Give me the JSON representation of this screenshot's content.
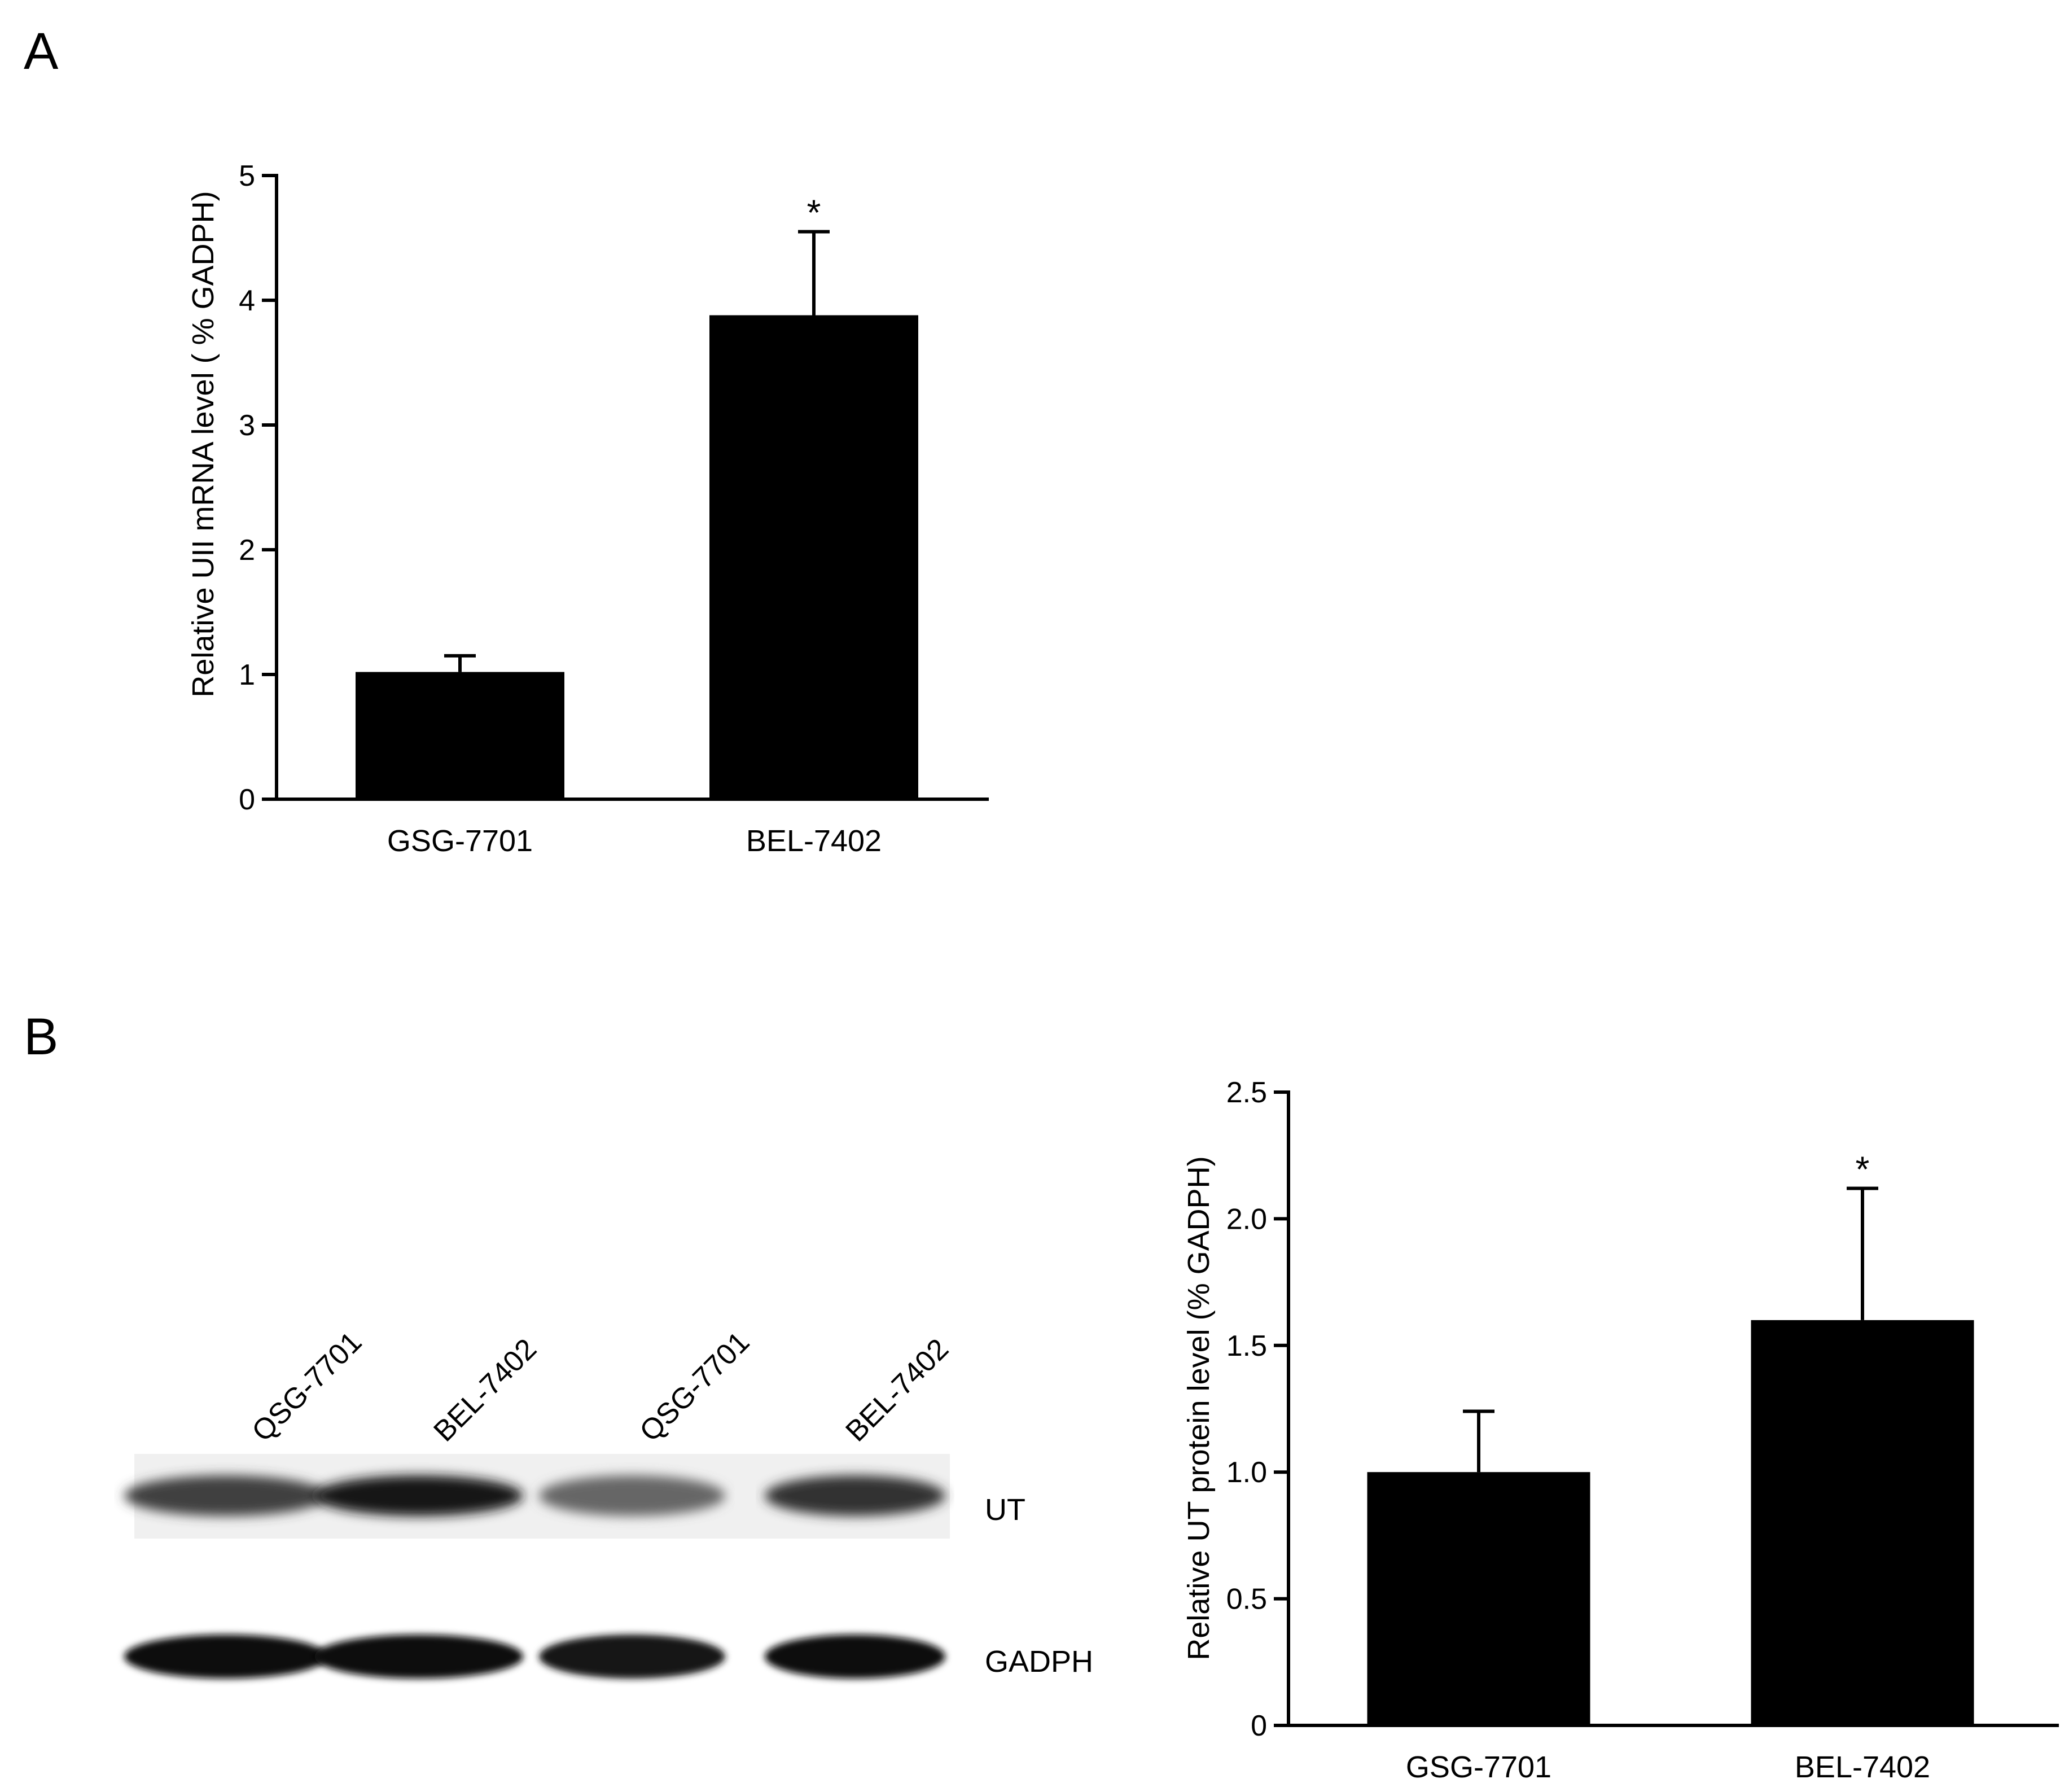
{
  "panels": {
    "a": {
      "letter": "A"
    },
    "b": {
      "letter": "B"
    }
  },
  "chart_data": [
    {
      "type": "bar",
      "panel": "A",
      "ylabel": "Relative UII mRNA level ( % GADPH)",
      "xlabel": "",
      "categories": [
        "GSG-7701",
        "BEL-7402"
      ],
      "values": [
        1.02,
        3.88
      ],
      "error": [
        0.13,
        0.67
      ],
      "significance": [
        "",
        "*"
      ],
      "ylim": [
        0,
        5
      ],
      "yticks": [
        "0",
        "1",
        "2",
        "3",
        "4",
        "5"
      ],
      "ytick_values": [
        0,
        1,
        2,
        3,
        4,
        5
      ],
      "bar_color": "#000000",
      "grid": false
    },
    {
      "type": "bar",
      "panel": "B",
      "ylabel": "Relative UT protein level (% GADPH)",
      "xlabel": "",
      "categories": [
        "GSG-7701",
        "BEL-7402"
      ],
      "values": [
        1.0,
        1.6
      ],
      "error": [
        0.24,
        0.52
      ],
      "significance": [
        "",
        "*"
      ],
      "ylim": [
        0,
        2.5
      ],
      "yticks": [
        "0",
        "0.5",
        "1.0",
        "1.5",
        "2.0",
        "2.5"
      ],
      "ytick_values": [
        0,
        0.5,
        1.0,
        1.5,
        2.0,
        2.5
      ],
      "bar_color": "#000000",
      "grid": false
    }
  ],
  "blot": {
    "lanes": [
      "QSG-7701",
      "BEL-7402",
      "QSG-7701",
      "BEL-7402"
    ],
    "bands": [
      {
        "label": "UT",
        "intensity": [
          0.75,
          0.9,
          0.6,
          0.8
        ]
      },
      {
        "label": "GADPH",
        "intensity": [
          0.95,
          0.95,
          0.9,
          0.95
        ]
      }
    ]
  }
}
